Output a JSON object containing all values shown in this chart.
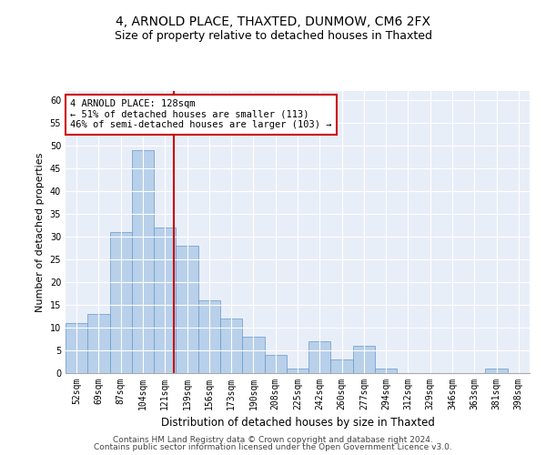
{
  "title_line1": "4, ARNOLD PLACE, THAXTED, DUNMOW, CM6 2FX",
  "title_line2": "Size of property relative to detached houses in Thaxted",
  "xlabel": "Distribution of detached houses by size in Thaxted",
  "ylabel": "Number of detached properties",
  "categories": [
    "52sqm",
    "69sqm",
    "87sqm",
    "104sqm",
    "121sqm",
    "139sqm",
    "156sqm",
    "173sqm",
    "190sqm",
    "208sqm",
    "225sqm",
    "242sqm",
    "260sqm",
    "277sqm",
    "294sqm",
    "312sqm",
    "329sqm",
    "346sqm",
    "363sqm",
    "381sqm",
    "398sqm"
  ],
  "values": [
    11,
    13,
    31,
    49,
    32,
    28,
    16,
    12,
    8,
    4,
    1,
    7,
    3,
    6,
    1,
    0,
    0,
    0,
    0,
    1,
    0
  ],
  "bar_color": "#b8d0ea",
  "bar_edge_color": "#6699cc",
  "vline_color": "#cc0000",
  "annotation_text": "4 ARNOLD PLACE: 128sqm\n← 51% of detached houses are smaller (113)\n46% of semi-detached houses are larger (103) →",
  "annotation_box_color": "#ffffff",
  "annotation_box_edge_color": "#cc0000",
  "ylim": [
    0,
    62
  ],
  "yticks": [
    0,
    5,
    10,
    15,
    20,
    25,
    30,
    35,
    40,
    45,
    50,
    55,
    60
  ],
  "background_color": "#e8eef8",
  "footer_line1": "Contains HM Land Registry data © Crown copyright and database right 2024.",
  "footer_line2": "Contains public sector information licensed under the Open Government Licence v3.0.",
  "title_fontsize": 10,
  "subtitle_fontsize": 9,
  "xlabel_fontsize": 8.5,
  "ylabel_fontsize": 8,
  "tick_fontsize": 7,
  "annotation_fontsize": 7.5,
  "footer_fontsize": 6.5
}
